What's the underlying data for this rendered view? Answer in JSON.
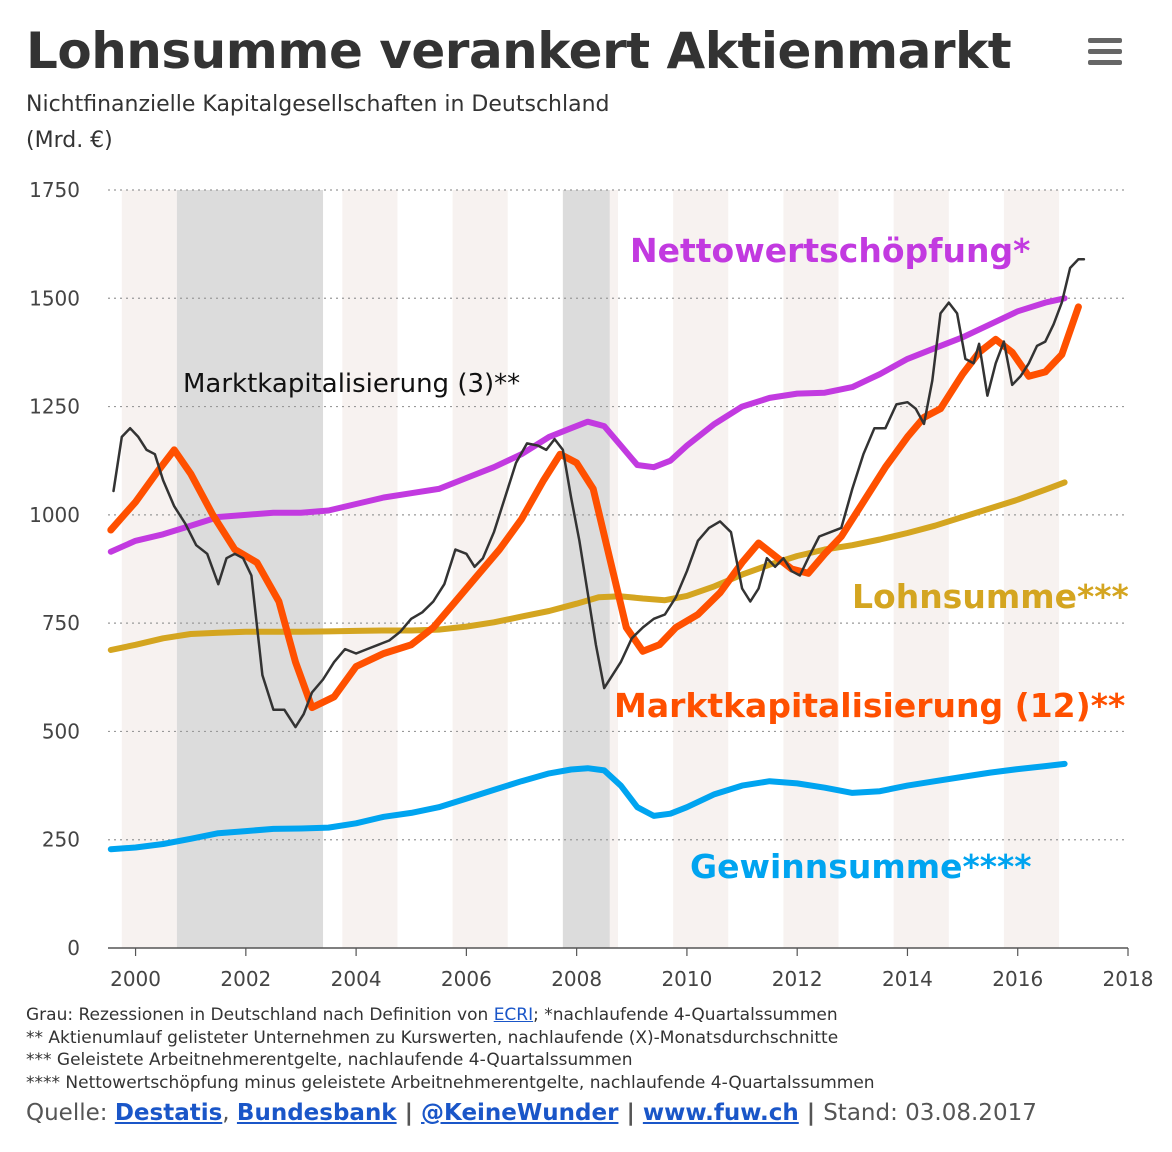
{
  "title": "Lohnsumme verankert Aktienmarkt",
  "subtitle": "Nichtfinanzielle Kapitalgesellschaften in Deutschland",
  "unit": "(Mrd. €)",
  "menu_icon": "hamburger-menu-icon",
  "notes": {
    "line1_prefix": "Grau: Rezessionen in Deutschland nach Definition von ",
    "line1_link": "ECRI",
    "line1_suffix": "; *nachlaufende 4-Quartalssummen",
    "line2": "** Aktienumlauf gelisteter Unternehmen zu Kurswerten, nachlaufende (X)-Monatsdurchschnitte",
    "line3": "*** Geleistete Arbeitnehmerentgelte, nachlaufende 4-Quartalssummen",
    "line4": "**** Nettowertschöpfung minus geleistete Arbeitnehmerentgelte, nachlaufende 4-Quartalssummen"
  },
  "source": {
    "label": "Quelle: ",
    "link1": "Destatis",
    "comma": ", ",
    "link2": "Bundesbank",
    "sep": " | ",
    "link3": "@KeineWunder",
    "link4": "www.fuw.ch",
    "stand": "Stand: 03.08.2017"
  },
  "colors": {
    "nettowertschoepfung": "#c23ae0",
    "lohnsumme": "#d4a520",
    "marktkap12": "#ff5000",
    "marktkap3": "#333333",
    "gewinnsumme": "#00a4f0",
    "recession": "#dcdcdc",
    "band": "#f7f2f0",
    "grid": "#999999"
  },
  "chart_data": {
    "type": "line",
    "title": "Lohnsumme verankert Aktienmarkt",
    "ylabel": "(Mrd. €)",
    "ylim": [
      0,
      1750
    ],
    "xlim": [
      1999.5,
      2018
    ],
    "yticks": [
      "0",
      "250",
      "500",
      "750",
      "1000",
      "1250",
      "1500",
      "1750"
    ],
    "xticks": [
      "2000",
      "2002",
      "2004",
      "2006",
      "2008",
      "2010",
      "2012",
      "2014",
      "2016",
      "2018"
    ],
    "grid": true,
    "recessions": [
      [
        2000.75,
        2003.4
      ],
      [
        2007.75,
        2008.6
      ]
    ],
    "series": [
      {
        "name": "Nettowertschöpfung*",
        "key": "nettowertschoepfung",
        "width": 6,
        "x": [
          1999.55,
          2000,
          2000.5,
          2001,
          2001.5,
          2002,
          2002.5,
          2003,
          2003.5,
          2004,
          2004.5,
          2005,
          2005.5,
          2006,
          2006.5,
          2007,
          2007.5,
          2007.9,
          2008.2,
          2008.5,
          2008.8,
          2009.1,
          2009.4,
          2009.7,
          2010,
          2010.5,
          2011,
          2011.5,
          2012,
          2012.5,
          2013,
          2013.5,
          2014,
          2014.5,
          2015,
          2015.5,
          2016,
          2016.5,
          2016.85
        ],
        "y": [
          915,
          940,
          955,
          975,
          995,
          1000,
          1005,
          1005,
          1010,
          1025,
          1040,
          1050,
          1060,
          1085,
          1110,
          1140,
          1180,
          1200,
          1215,
          1205,
          1160,
          1115,
          1110,
          1125,
          1160,
          1210,
          1250,
          1270,
          1280,
          1282,
          1295,
          1325,
          1360,
          1385,
          1410,
          1440,
          1470,
          1490,
          1500
        ]
      },
      {
        "name": "Lohnsumme***",
        "key": "lohnsumme",
        "width": 6,
        "x": [
          1999.55,
          2000,
          2000.5,
          2001,
          2001.5,
          2002,
          2002.5,
          2003,
          2003.5,
          2004,
          2004.5,
          2005,
          2005.5,
          2006,
          2006.5,
          2007,
          2007.5,
          2008,
          2008.4,
          2008.8,
          2009.2,
          2009.6,
          2010,
          2010.5,
          2011,
          2011.5,
          2012,
          2012.5,
          2013,
          2013.5,
          2014,
          2014.5,
          2015,
          2015.5,
          2016,
          2016.5,
          2016.85
        ],
        "y": [
          688,
          700,
          715,
          725,
          728,
          730,
          730,
          730,
          731,
          732,
          733,
          733,
          735,
          742,
          752,
          765,
          778,
          795,
          810,
          812,
          807,
          803,
          813,
          835,
          862,
          885,
          905,
          920,
          930,
          943,
          958,
          975,
          995,
          1015,
          1035,
          1058,
          1075
        ]
      },
      {
        "name": "Marktkapitalisierung (12)**",
        "key": "marktkap12",
        "width": 7,
        "x": [
          1999.55,
          2000,
          2000.4,
          2000.7,
          2001,
          2001.4,
          2001.8,
          2002.2,
          2002.6,
          2002.9,
          2003.2,
          2003.6,
          2004,
          2004.5,
          2005,
          2005.4,
          2005.8,
          2006.2,
          2006.6,
          2007,
          2007.4,
          2007.7,
          2008,
          2008.3,
          2008.6,
          2008.9,
          2009.2,
          2009.5,
          2009.8,
          2010.2,
          2010.6,
          2011,
          2011.3,
          2011.6,
          2011.9,
          2012.2,
          2012.5,
          2012.8,
          2013.2,
          2013.6,
          2014,
          2014.3,
          2014.6,
          2015,
          2015.3,
          2015.6,
          2015.9,
          2016.2,
          2016.5,
          2016.8,
          2017.1
        ],
        "y": [
          965,
          1030,
          1100,
          1150,
          1095,
          1000,
          920,
          890,
          800,
          660,
          555,
          580,
          650,
          680,
          700,
          740,
          800,
          860,
          920,
          990,
          1080,
          1140,
          1120,
          1060,
          900,
          740,
          685,
          700,
          740,
          770,
          820,
          890,
          935,
          905,
          875,
          865,
          910,
          950,
          1030,
          1110,
          1180,
          1225,
          1245,
          1325,
          1375,
          1405,
          1375,
          1320,
          1330,
          1370,
          1480
        ]
      },
      {
        "name": "Marktkapitalisierung (3)**",
        "key": "marktkap3",
        "width": 2.5,
        "x": [
          1999.6,
          1999.75,
          1999.9,
          2000.05,
          2000.2,
          2000.35,
          2000.5,
          2000.7,
          2000.9,
          2001.1,
          2001.3,
          2001.5,
          2001.65,
          2001.8,
          2001.95,
          2002.1,
          2002.3,
          2002.5,
          2002.7,
          2002.9,
          2003.05,
          2003.2,
          2003.4,
          2003.6,
          2003.8,
          2004,
          2004.2,
          2004.4,
          2004.6,
          2004.8,
          2005,
          2005.2,
          2005.4,
          2005.6,
          2005.8,
          2006,
          2006.15,
          2006.3,
          2006.5,
          2006.7,
          2006.9,
          2007.1,
          2007.3,
          2007.45,
          2007.6,
          2007.75,
          2007.9,
          2008.05,
          2008.2,
          2008.35,
          2008.5,
          2008.65,
          2008.8,
          2009,
          2009.2,
          2009.4,
          2009.6,
          2009.8,
          2010,
          2010.2,
          2010.4,
          2010.6,
          2010.8,
          2011,
          2011.15,
          2011.3,
          2011.45,
          2011.6,
          2011.75,
          2011.9,
          2012.05,
          2012.2,
          2012.4,
          2012.6,
          2012.8,
          2013,
          2013.2,
          2013.4,
          2013.6,
          2013.8,
          2014,
          2014.15,
          2014.3,
          2014.45,
          2014.6,
          2014.75,
          2014.9,
          2015.05,
          2015.2,
          2015.3,
          2015.45,
          2015.6,
          2015.75,
          2015.9,
          2016.05,
          2016.2,
          2016.35,
          2016.5,
          2016.65,
          2016.8,
          2016.95,
          2017.1,
          2017.2
        ],
        "y": [
          1055,
          1180,
          1200,
          1180,
          1150,
          1140,
          1080,
          1020,
          980,
          930,
          910,
          840,
          900,
          910,
          900,
          860,
          630,
          550,
          550,
          510,
          540,
          590,
          620,
          660,
          690,
          680,
          690,
          700,
          710,
          730,
          760,
          775,
          800,
          840,
          920,
          910,
          880,
          900,
          960,
          1040,
          1120,
          1165,
          1160,
          1150,
          1175,
          1150,
          1040,
          940,
          820,
          700,
          600,
          630,
          660,
          715,
          740,
          760,
          770,
          810,
          870,
          940,
          970,
          985,
          960,
          830,
          800,
          830,
          900,
          880,
          900,
          870,
          860,
          900,
          950,
          960,
          970,
          1060,
          1140,
          1200,
          1200,
          1255,
          1260,
          1245,
          1210,
          1310,
          1465,
          1490,
          1465,
          1360,
          1350,
          1395,
          1275,
          1350,
          1400,
          1300,
          1320,
          1350,
          1390,
          1400,
          1440,
          1490,
          1570,
          1590,
          1590
        ]
      },
      {
        "name": "Gewinnsumme****",
        "key": "gewinnsumme",
        "width": 6,
        "x": [
          1999.55,
          2000,
          2000.5,
          2001,
          2001.5,
          2002,
          2002.5,
          2003,
          2003.5,
          2004,
          2004.5,
          2005,
          2005.5,
          2006,
          2006.5,
          2007,
          2007.5,
          2007.9,
          2008.2,
          2008.5,
          2008.8,
          2009.1,
          2009.4,
          2009.7,
          2010,
          2010.5,
          2011,
          2011.5,
          2012,
          2012.5,
          2013,
          2013.5,
          2014,
          2014.5,
          2015,
          2015.5,
          2016,
          2016.5,
          2016.85
        ],
        "y": [
          228,
          232,
          240,
          252,
          265,
          270,
          275,
          276,
          278,
          288,
          303,
          312,
          325,
          345,
          365,
          385,
          403,
          412,
          415,
          410,
          375,
          325,
          305,
          310,
          325,
          355,
          375,
          385,
          380,
          370,
          358,
          362,
          375,
          385,
          395,
          405,
          413,
          420,
          425
        ]
      }
    ],
    "labels": [
      {
        "key": "nettowertschoepfung",
        "text": "Nettowertschöpfung*"
      },
      {
        "key": "lohnsumme",
        "text": "Lohnsumme***"
      },
      {
        "key": "marktkap12",
        "text": "Marktkapitalisierung (12)**"
      },
      {
        "key": "marktkap3",
        "text": "Marktkapitalisierung (3)**"
      },
      {
        "key": "gewinnsumme",
        "text": "Gewinnsumme****"
      }
    ]
  }
}
